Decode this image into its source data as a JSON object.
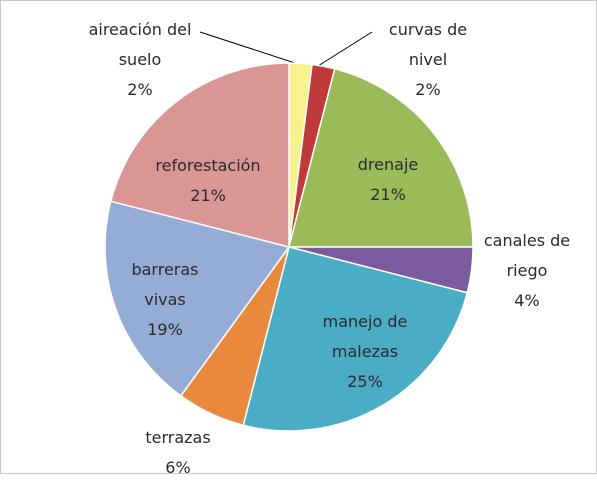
{
  "chart_data": {
    "type": "pie",
    "categories": [
      "aireación del suelo",
      "curvas de nivel",
      "drenaje",
      "canales de riego",
      "manejo de malezas",
      "terrazas",
      "barreras vivas",
      "reforestación"
    ],
    "values": [
      2,
      2,
      21,
      4,
      25,
      6,
      19,
      21
    ],
    "value_labels": [
      "2%",
      "2%",
      "21%",
      "4%",
      "25%",
      "6%",
      "19%",
      "21%"
    ],
    "colors": [
      "#f7f28b",
      "#c0393b",
      "#9bbb59",
      "#7a5c9e",
      "#4bacc6",
      "#e8893d",
      "#95add6",
      "#d99694"
    ]
  }
}
